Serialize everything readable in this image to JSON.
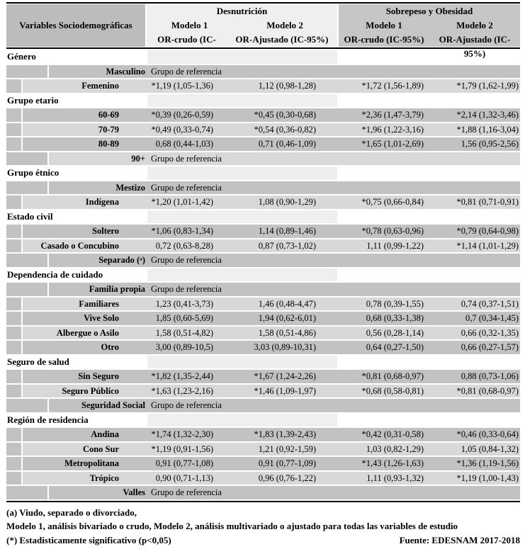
{
  "colors": {
    "header_label_bg": "#BCBCBC",
    "desnutricion_band_bg": "#EFEFEF",
    "sobrepeso_band_bg": "#C6C6C6",
    "row_dark": "#C2C2C2",
    "row_light": "#D8D8D8"
  },
  "header": {
    "variables_label": "Variables Sociodemográficas",
    "group1_title": "Desnutrición",
    "group2_title": "Sobrepeso y Obesidad",
    "model1_label": "Modelo 1",
    "model2_label": "Modelo 2",
    "or_crudo_label": "OR-crudo (IC-95%)",
    "or_ajustado_label": "OR-Ajustado (IC-95%)"
  },
  "reference_text": "Grupo de referencia",
  "sections": [
    {
      "title": "Género",
      "rows": [
        {
          "label": "Masculino",
          "reference": true
        },
        {
          "label": "Femenino",
          "values": [
            "*1,19 (1,05-1,36)",
            "1,12 (0,98-1,28)",
            "*1,72 (1,56-1,89)",
            "*1,79 (1,62-1,99)"
          ]
        }
      ]
    },
    {
      "title": "Grupo etario",
      "rows": [
        {
          "label": "60-69",
          "values": [
            "*0,39 (0,26-0,59)",
            "*0,45 (0,30-0,68)",
            "*2,36 (1,47-3,79)",
            "*2,14 (1,32-3,46)"
          ]
        },
        {
          "label": "70-79",
          "values": [
            "*0,49 (0,33-0,74)",
            "*0,54 (0,36-0,82)",
            "*1,96 (1,22-3,16)",
            "*1,88 (1,16-3,04)"
          ]
        },
        {
          "label": "80-89",
          "values": [
            "0,68 (0,44-1,03)",
            "0,71 (0,46-1,09)",
            "*1,65 (1,01-2,69)",
            "1,56 (0,95-2,56)"
          ]
        },
        {
          "label": "90+",
          "reference": true
        }
      ]
    },
    {
      "title": "Grupo étnico",
      "rows": [
        {
          "label": "Mestizo",
          "reference": true
        },
        {
          "label": "Indígena",
          "values": [
            "*1,20 (1,01-1,42)",
            "1,08 (0,90-1,29)",
            "*0,75 (0,66-0,84)",
            "*0,81 (0,71-0,91)"
          ]
        }
      ]
    },
    {
      "title": "Estado civil",
      "rows": [
        {
          "label": "Soltero",
          "values": [
            "*1,06 (0,83-1,34)",
            "1,14 (0,89-1,46)",
            "*0,78 (0,63-0,96)",
            "*0,79 (0,64-0,98)"
          ]
        },
        {
          "label": "Casado o Concubino",
          "values": [
            "0,72 (0,63-8,28)",
            "0,87 (0,73-1,02)",
            "1,11 (0,99-1,22)",
            "*1,14 (1,01-1,29)"
          ]
        },
        {
          "label": "Separado (ᵃ)",
          "reference": true
        }
      ]
    },
    {
      "title": "Dependencia de cuidado",
      "rows": [
        {
          "label": "Familia propia",
          "reference": true
        },
        {
          "label": "Familiares",
          "values": [
            "1,23 (0,41-3,73)",
            "1,46 (0,48-4,47)",
            "0,78 (0,39-1,55)",
            "0,74 (0,37-1,51)"
          ]
        },
        {
          "label": "Vive Solo",
          "values": [
            "1,85 (0,60-5,69)",
            "1,94 (0,62-6,01)",
            "0,68 (0,33-1,38)",
            "0,7 (0,34-1,45)"
          ]
        },
        {
          "label": "Albergue o Asilo",
          "values": [
            "1,58 (0,51-4,82)",
            "1,58 (0,51-4,86)",
            "0,56 (0,28-1,14)",
            "0,66 (0,32-1,35)"
          ]
        },
        {
          "label": "Otro",
          "values": [
            "3,00 (0,89-10,5)",
            "3,03 (0,89-10,31)",
            "0,64 (0,27-1,50)",
            "0,66 (0,27-1,57)"
          ]
        }
      ]
    },
    {
      "title": "Seguro de salud",
      "rows": [
        {
          "label": "Sin Seguro",
          "values": [
            "*1,82 (1,35-2,44)",
            "*1,67 (1,24-2,26)",
            "*0,81 (0,68-0,97)",
            "0,88 (0,73-1,06)"
          ]
        },
        {
          "label": "Seguro Público",
          "values": [
            "*1,63 (1,23-2,16)",
            "*1,46 (1,09-1,97)",
            "*0,68 (0,58-0,81)",
            "*0,81 (0,68-0,97)"
          ]
        },
        {
          "label": "Seguridad Social",
          "reference": true
        }
      ]
    },
    {
      "title": "Región de residencia",
      "rows": [
        {
          "label": "Andina",
          "values": [
            "*1,74 (1,32-2,30)",
            "*1,83 (1,39-2,43)",
            "*0,42 (0,31-0,58)",
            "*0,46 (0,33-0,64)"
          ]
        },
        {
          "label": "Cono Sur",
          "values": [
            "*1,19 (0,91-1,56)",
            "1,21 (0,92-1,59)",
            "1,03 (0,82-1,29)",
            "1,05 (0,84-1,32)"
          ]
        },
        {
          "label": "Metropolitana",
          "values": [
            "0,91 (0,77-1,08)",
            "0,91 (0,77-1,09)",
            "*1,43 (1,26-1,63)",
            "*1,36 (1,19-1,56)"
          ]
        },
        {
          "label": "Trópico",
          "values": [
            "0,90 (0,71-1,13)",
            "0,96 (0,76-1,22)",
            "1,11 (0,93-1,32)",
            "*1,19 (1,00-1,43)"
          ]
        },
        {
          "label": "Valles",
          "reference": true
        }
      ]
    }
  ],
  "footnotes": {
    "line1": "(a) Viudo, separado o divorciado,",
    "line2": "Modelo 1, análisis bivariado o crudo, Modelo 2, análisis multivariado o ajustado para todas las variables de estudio",
    "line3_left": "(*) Estadisticamente significativo (p<0,05)",
    "line3_right": "Fuente: EDESNAM 2017-2018"
  }
}
